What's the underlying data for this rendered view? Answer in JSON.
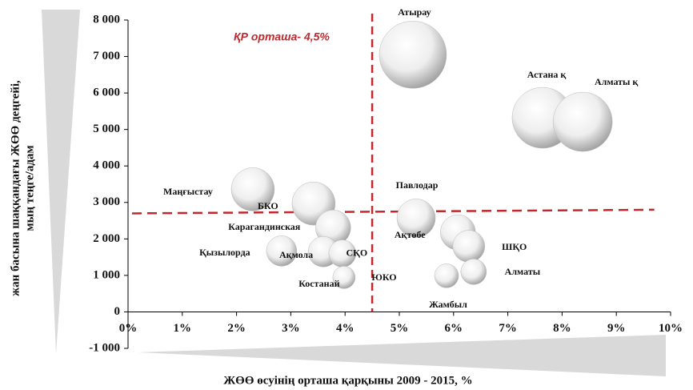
{
  "chart_data": {
    "type": "bubble",
    "x_label": "ЖӨӨ өсуінің орташа қарқыны 2009 - 2015, %",
    "y_label": [
      "жан басына шаққандағы ЖӨӨ деңгейі,",
      "мың теңге/адам"
    ],
    "reference_note": "ҚР орташа- 4,5%",
    "vline": 4.5,
    "hline": {
      "x": [
        0,
        9.7
      ],
      "y": [
        2700,
        2800
      ]
    },
    "annotations": [
      "ЮКО"
    ],
    "xlim": [
      0,
      10
    ],
    "ylim": [
      -1000,
      8000
    ],
    "xticks": [
      {
        "value": 0,
        "label": "0%"
      },
      {
        "value": 1,
        "label": "1%"
      },
      {
        "value": 2,
        "label": "2%"
      },
      {
        "value": 3,
        "label": "3%"
      },
      {
        "value": 4,
        "label": "4%"
      },
      {
        "value": 5,
        "label": "5%"
      },
      {
        "value": 6,
        "label": "6%"
      },
      {
        "value": 7,
        "label": "7%"
      },
      {
        "value": 8,
        "label": "8%"
      },
      {
        "value": 9,
        "label": "9%"
      },
      {
        "value": 10,
        "label": "10%"
      }
    ],
    "yticks": [
      {
        "value": -1000,
        "label": "-1 000"
      },
      0,
      {
        "value": 1000,
        "label": "1 000"
      },
      {
        "value": 2000,
        "label": "2 000"
      },
      {
        "value": 3000,
        "label": "3 000"
      },
      {
        "value": 4000,
        "label": "4 000"
      },
      {
        "value": 5000,
        "label": "5 000"
      },
      {
        "value": 6000,
        "label": "6 000"
      },
      {
        "value": 7000,
        "label": "7 000"
      },
      {
        "value": 8000,
        "label": "8 000"
      }
    ],
    "names": [
      "Атырау",
      "Астана қ",
      "Алматы  қ",
      "Маңғыстау",
      "БКО",
      "Карагандинская",
      "Павлодар",
      "Ақтөбе",
      "ШҚО",
      "Қызылорда",
      "Ақмола",
      "СҚО",
      "Костанай",
      "Жамбыл",
      "Алматы"
    ],
    "x": [
      5.25,
      7.64,
      8.38,
      2.3,
      3.42,
      3.78,
      5.31,
      6.08,
      6.28,
      2.83,
      3.6,
      3.95,
      3.98,
      5.87,
      6.37
    ],
    "y": [
      7050,
      5320,
      5210,
      3360,
      2970,
      2310,
      2570,
      2180,
      1800,
      1670,
      1650,
      1600,
      945,
      990,
      1100
    ],
    "size": [
      42,
      38,
      37,
      27,
      27,
      22,
      24,
      22,
      20,
      19,
      19,
      17,
      14,
      15,
      16
    ]
  }
}
